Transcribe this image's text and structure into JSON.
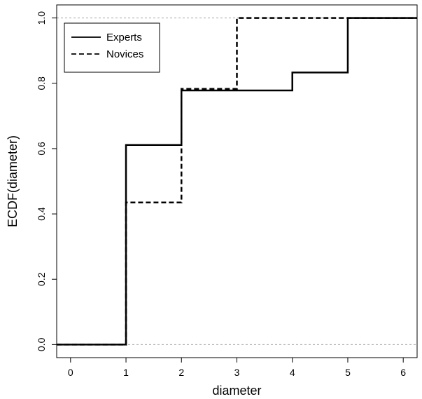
{
  "chart_data": {
    "type": "line",
    "subtype": "step-ecdf",
    "title": "",
    "xlabel": "diameter",
    "ylabel": "ECDF(diameter)",
    "xlim": [
      -0.25,
      6.25
    ],
    "ylim": [
      -0.04,
      1.04
    ],
    "x_ticks": [
      0,
      1,
      2,
      3,
      4,
      5,
      6
    ],
    "x_tick_labels": [
      "0",
      "1",
      "2",
      "3",
      "4",
      "5",
      "6"
    ],
    "y_ticks": [
      0.0,
      0.2,
      0.4,
      0.6,
      0.8,
      1.0
    ],
    "y_tick_labels": [
      "0.0",
      "0.2",
      "0.4",
      "0.6",
      "0.8",
      "1.0"
    ],
    "reference_lines": [
      0,
      1
    ],
    "grid": false,
    "legend_position": "top-left",
    "series": [
      {
        "name": "Experts",
        "line_style": "solid",
        "steps": [
          {
            "x": 1,
            "y": 0.611
          },
          {
            "x": 2,
            "y": 0.778
          },
          {
            "x": 4,
            "y": 0.833
          },
          {
            "x": 5,
            "y": 1.0
          }
        ]
      },
      {
        "name": "Novices",
        "line_style": "dashed",
        "steps": [
          {
            "x": 1,
            "y": 0.435
          },
          {
            "x": 2,
            "y": 0.783
          },
          {
            "x": 3,
            "y": 1.0
          }
        ]
      }
    ]
  }
}
